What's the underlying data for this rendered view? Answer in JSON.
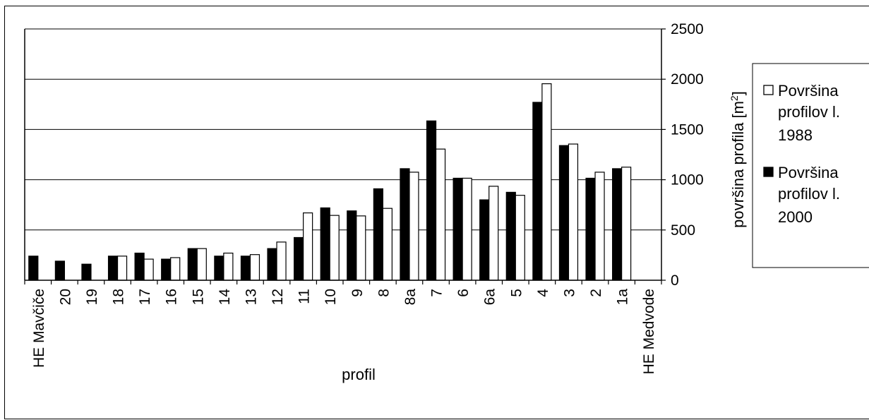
{
  "chart_data": {
    "type": "bar",
    "categories": [
      "HE Mavčiče",
      "20",
      "19",
      "18",
      "17",
      "16",
      "15",
      "14",
      "13",
      "12",
      "11",
      "10",
      "9",
      "8",
      "8a",
      "7",
      "6",
      "6a",
      "5",
      "4",
      "3",
      "2",
      "1a",
      "HE Medvode"
    ],
    "series": [
      {
        "name_lines": [
          "Površina",
          "profilov l.",
          "2000"
        ],
        "color": "#000000",
        "values": [
          240,
          190,
          160,
          240,
          270,
          210,
          315,
          240,
          240,
          315,
          425,
          720,
          690,
          910,
          1110,
          1585,
          1015,
          800,
          875,
          1770,
          1340,
          1015,
          1110,
          null
        ]
      },
      {
        "name_lines": [
          "Površina",
          "profilov l.",
          "1988"
        ],
        "color": "#ffffff",
        "values": [
          null,
          null,
          null,
          240,
          210,
          225,
          315,
          270,
          255,
          380,
          670,
          645,
          640,
          715,
          1075,
          1305,
          1015,
          935,
          845,
          1955,
          1355,
          1075,
          1125,
          null
        ]
      }
    ],
    "xlabel": "profil",
    "ylabel_main": "površina profila [m",
    "ylabel_sup": "2",
    "ylabel_end": "]",
    "ylim": [
      0,
      2500
    ],
    "yticks": [
      0,
      500,
      1000,
      1500,
      2000,
      2500
    ],
    "grid": true,
    "legend_position": "right"
  }
}
